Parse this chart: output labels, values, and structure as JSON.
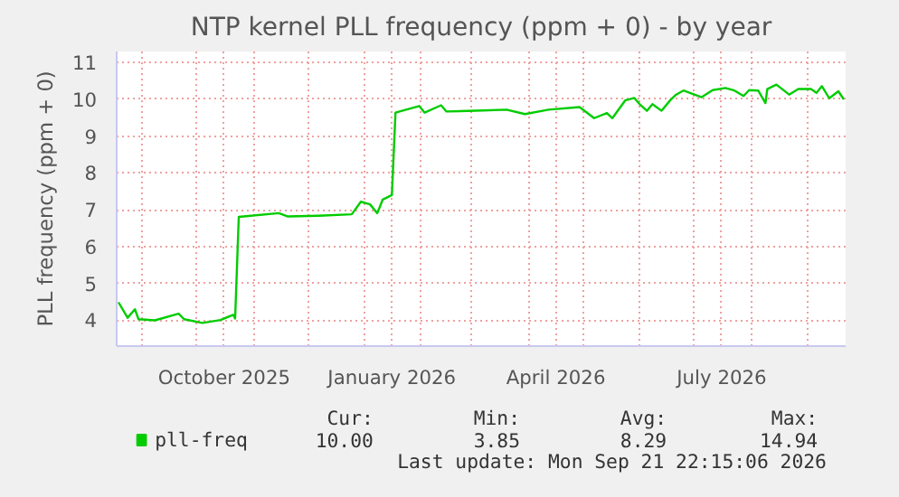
{
  "chart_data": {
    "type": "line",
    "title": "NTP kernel PLL frequency (ppm + 0) - by year",
    "ylabel": "PLL frequency (ppm + 0)",
    "x": [
      "2025-08-19",
      "2025-08-24",
      "2025-08-28",
      "2025-08-30",
      "2025-09-08",
      "2025-09-21",
      "2025-09-24",
      "2025-10-04",
      "2025-10-14",
      "2025-10-21",
      "2025-10-22",
      "2025-10-24",
      "2025-11-15",
      "2025-11-20",
      "2025-12-07",
      "2025-12-25",
      "2025-12-30",
      "2026-01-04",
      "2026-01-08",
      "2026-01-11",
      "2026-01-16",
      "2026-01-18",
      "2026-01-31",
      "2026-02-03",
      "2026-02-12",
      "2026-02-15",
      "2026-03-07",
      "2026-03-20",
      "2026-03-30",
      "2026-04-12",
      "2026-04-29",
      "2026-05-07",
      "2026-05-14",
      "2026-05-17",
      "2026-05-24",
      "2026-05-29",
      "2026-06-01",
      "2026-06-05",
      "2026-06-08",
      "2026-06-13",
      "2026-06-18",
      "2026-06-21",
      "2026-06-25",
      "2026-07-05",
      "2026-07-11",
      "2026-07-18",
      "2026-07-23",
      "2026-07-28",
      "2026-07-31",
      "2026-08-05",
      "2026-08-09",
      "2026-08-10",
      "2026-08-15",
      "2026-08-22",
      "2026-08-27",
      "2026-09-03",
      "2026-09-06",
      "2026-09-09",
      "2026-09-13",
      "2026-09-18",
      "2026-09-21"
    ],
    "series": [
      {
        "name": "pll-freq",
        "color": "#00cc00",
        "values": [
          4.49,
          4.07,
          4.3,
          4.03,
          4.0,
          4.18,
          4.03,
          3.93,
          4.01,
          4.15,
          4.05,
          6.81,
          6.91,
          6.82,
          6.84,
          6.88,
          7.22,
          7.15,
          6.91,
          7.28,
          7.4,
          9.64,
          9.82,
          9.64,
          9.84,
          9.67,
          9.7,
          9.72,
          9.6,
          9.72,
          9.79,
          9.49,
          9.63,
          9.49,
          9.97,
          10.04,
          9.87,
          9.69,
          9.87,
          9.69,
          9.99,
          10.13,
          10.24,
          10.06,
          10.25,
          10.31,
          10.24,
          10.09,
          10.25,
          10.24,
          9.9,
          10.28,
          10.4,
          10.13,
          10.28,
          10.28,
          10.18,
          10.36,
          10.03,
          10.22,
          10.0
        ]
      }
    ],
    "xlim": [
      "2025-08-18",
      "2026-09-22"
    ],
    "xticks": [
      {
        "value": "2025-09-01",
        "label": null
      },
      {
        "value": "2025-10-01",
        "label": null
      },
      {
        "value": "2025-10-16",
        "label": "October 2025"
      },
      {
        "value": "2025-11-01",
        "label": null
      },
      {
        "value": "2025-12-01",
        "label": null
      },
      {
        "value": "2026-01-01",
        "label": null
      },
      {
        "value": "2026-01-16",
        "label": "January 2026"
      },
      {
        "value": "2026-02-01",
        "label": null
      },
      {
        "value": "2026-03-01",
        "label": null
      },
      {
        "value": "2026-04-01",
        "label": null
      },
      {
        "value": "2026-04-16",
        "label": "April 2026"
      },
      {
        "value": "2026-05-01",
        "label": null
      },
      {
        "value": "2026-06-01",
        "label": null
      },
      {
        "value": "2026-07-01",
        "label": null
      },
      {
        "value": "2026-07-16",
        "label": "July 2026"
      },
      {
        "value": "2026-08-01",
        "label": null
      },
      {
        "value": "2026-09-01",
        "label": null
      }
    ],
    "ylim": [
      3.3,
      11.3
    ],
    "yticks": [
      4,
      5,
      6,
      7,
      8,
      9,
      10,
      11
    ],
    "grid": true,
    "legend": "bottom",
    "marker": "none",
    "line_style": "solid",
    "annotations": [
      "Cur:",
      "10.00",
      "Min:",
      "3.85",
      "Avg:",
      "8.29",
      "Max:",
      "14.94",
      "Last update: Mon Sep 21 22:15:06 2026"
    ]
  }
}
